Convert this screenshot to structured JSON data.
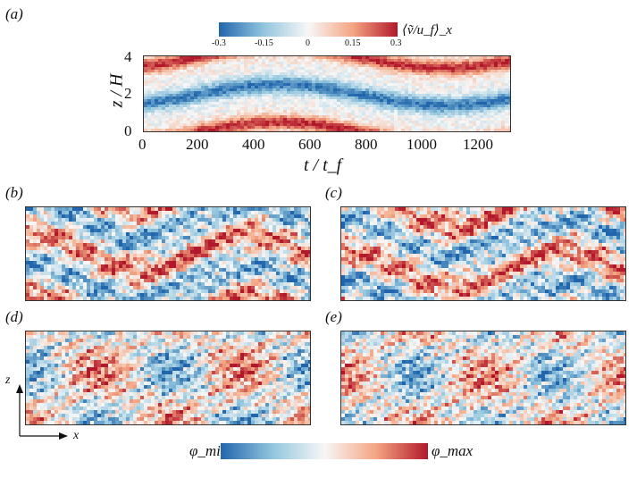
{
  "figure": {
    "panels": {
      "a": "(a)",
      "b": "(b)",
      "c": "(c)",
      "d": "(d)",
      "e": "(e)"
    },
    "colorbar_top": {
      "ticks": [
        "-0.3",
        "-0.15",
        "0",
        "0.15",
        "0.3"
      ],
      "label": "⟨ṽ/u_f⟩_x"
    },
    "colorbar_bottom": {
      "min_label": "φ_min",
      "max_label": "φ_max"
    },
    "axis_arrows": {
      "z": "z",
      "x": "x"
    },
    "colors": {
      "blue": "#2b6cb0",
      "white": "#f5f5f5",
      "red": "#b2182b"
    }
  },
  "chart_data": {
    "type": "heatmap",
    "title": "",
    "xlabel": "t / t_f",
    "ylabel": "z / H",
    "xlim": [
      0,
      1300
    ],
    "ylim": [
      0,
      4
    ],
    "xticks": [
      "0",
      "200",
      "400",
      "600",
      "800",
      "1000",
      "1200"
    ],
    "yticks": [
      "0",
      "2",
      "4"
    ],
    "colorbar_range": [
      -0.3,
      0.3
    ]
  }
}
